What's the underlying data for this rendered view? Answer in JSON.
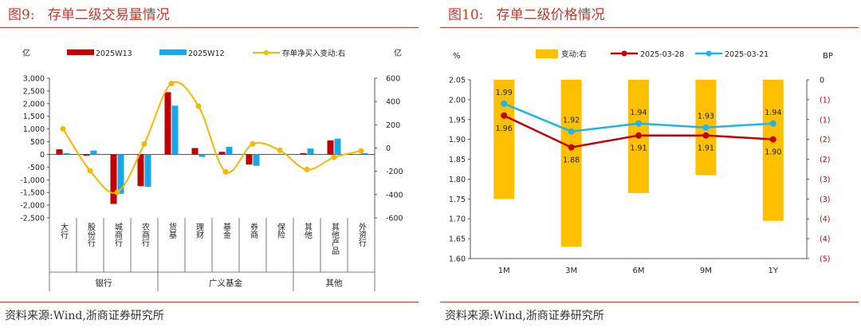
{
  "figures": [
    {
      "title": "图9:   存单二级交易量情况",
      "source": "资料来源:Wind,浙商证券研究所",
      "chart_data": {
        "type": "bar",
        "left_unit": "亿",
        "right_unit": "亿",
        "categories": [
          "大行",
          "股份行",
          "城商行",
          "农商行",
          "货基",
          "理财",
          "基金",
          "券商",
          "保险",
          "其他",
          "其他产品",
          "外资行"
        ],
        "groups": [
          {
            "label": "银行",
            "start": 0,
            "end": 3
          },
          {
            "label": "广义基金",
            "start": 4,
            "end": 8
          },
          {
            "label": "其他",
            "start": 9,
            "end": 11
          }
        ],
        "series": [
          {
            "name": "2025W13",
            "type": "bar",
            "axis": "left",
            "color": "#c00000",
            "values": [
              200,
              -50,
              -1950,
              -1250,
              2450,
              250,
              100,
              -400,
              0,
              50,
              550,
              0
            ]
          },
          {
            "name": "2025W12",
            "type": "bar",
            "axis": "left",
            "color": "#1aa7e8",
            "values": [
              50,
              150,
              -1550,
              -1280,
              1920,
              -100,
              300,
              -450,
              0,
              230,
              620,
              50
            ]
          },
          {
            "name": "存单净买入变动:右",
            "type": "line",
            "axis": "right",
            "color": "#f5b800",
            "values": [
              165,
              -195,
              -380,
              35,
              555,
              360,
              -205,
              35,
              -20,
              -185,
              -80,
              -25
            ]
          }
        ],
        "ylim_left": [
          -2500,
          3000
        ],
        "yticks_left": [
          "3,000",
          "2,500",
          "2,000",
          "1,500",
          "1,000",
          "500",
          "0",
          "-500",
          "-1,000",
          "-1,500",
          "-2,000",
          "-2,500"
        ],
        "ylim_right": [
          -600,
          600
        ],
        "yticks_right": [
          "600",
          "400",
          "200",
          "0",
          "-200",
          "-400",
          "-600"
        ],
        "legend": "top"
      }
    },
    {
      "title": "图10:   存单二级价格情况",
      "source": "资料来源:Wind,浙商证券研究所",
      "chart_data": {
        "type": "line",
        "left_unit": "%",
        "right_unit": "BP",
        "categories": [
          "1M",
          "3M",
          "6M",
          "9M",
          "1Y"
        ],
        "series": [
          {
            "name": "变动:右",
            "type": "bar",
            "axis": "right",
            "color": "#ffc000",
            "values": [
              -3,
              -4.2,
              -2.85,
              -2.4,
              -3.55
            ]
          },
          {
            "name": "2025-03-28",
            "type": "line",
            "axis": "left",
            "color": "#c00000",
            "values": [
              1.96,
              1.88,
              1.91,
              1.91,
              1.9
            ],
            "labels": [
              "1.96",
              "1.88",
              "1.91",
              "1.91",
              "1.90"
            ]
          },
          {
            "name": "2025-03-21",
            "type": "line",
            "axis": "left",
            "color": "#1fb5e8",
            "values": [
              1.99,
              1.92,
              1.94,
              1.93,
              1.94
            ],
            "labels": [
              "1.99",
              "1.92",
              "1.94",
              "1.93",
              "1.94"
            ]
          }
        ],
        "ylim_left": [
          1.6,
          2.05
        ],
        "yticks_left": [
          "2.05",
          "2.00",
          "1.95",
          "1.90",
          "1.85",
          "1.80",
          "1.75",
          "1.70",
          "1.65",
          "1.60"
        ],
        "ylim_right": [
          -4.5,
          0
        ],
        "yticks_right": [
          "0",
          "(1)",
          "(1)",
          "(2)",
          "(2)",
          "(3)",
          "(3)",
          "(4)",
          "(4)",
          "(5)"
        ],
        "right_tick_color": "#c00000",
        "legend": "top"
      }
    }
  ]
}
